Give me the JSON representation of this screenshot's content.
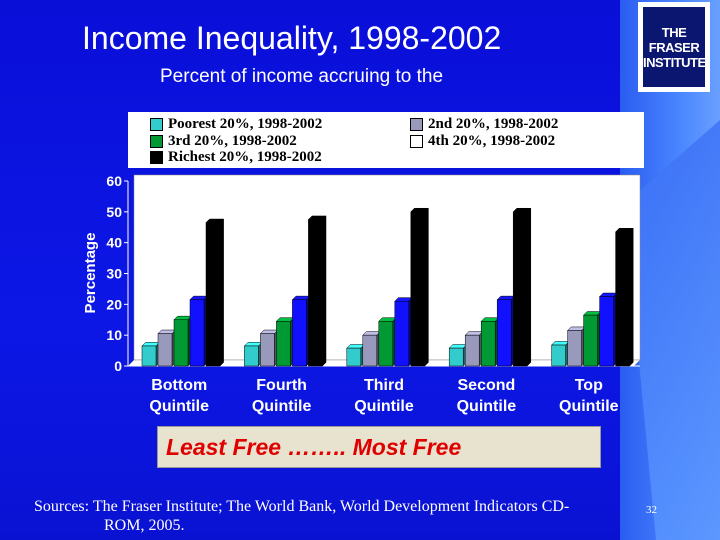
{
  "slide": {
    "title": "Income Inequality, 1998-2002",
    "subtitle": "Percent of income accruing to the",
    "logo_text": [
      "THE FRASER",
      "INSTITUTE"
    ],
    "banner": "Least Free …….. Most Free",
    "sources_line1": "Sources: The Fraser Institute; The World Bank, World Development Indicators CD-",
    "sources_line2": "ROM, 2005.",
    "page_number": "32"
  },
  "chart_data": {
    "type": "bar",
    "categories": [
      [
        "Bottom",
        "Quintile"
      ],
      [
        "Fourth",
        "Quintile"
      ],
      [
        "Third",
        "Quintile"
      ],
      [
        "Second",
        "Quintile"
      ],
      [
        "Top",
        "Quintile"
      ]
    ],
    "ylabel": "Percentage",
    "ylim": [
      0,
      60
    ],
    "yticks": [
      0,
      10,
      20,
      30,
      40,
      50,
      60
    ],
    "grid": false,
    "legend_position": "top",
    "series": [
      {
        "name": "Poorest 20%, 1998-2002",
        "color": "#33cccc",
        "values": [
          6.5,
          6.5,
          5.8,
          5.8,
          6.8
        ]
      },
      {
        "name": "2nd 20%, 1998-2002",
        "color": "#9999bb",
        "values": [
          10.5,
          10.5,
          10.0,
          10.0,
          11.5
        ]
      },
      {
        "name": "3rd 20%, 1998-2002",
        "color": "#009933",
        "values": [
          15.0,
          14.5,
          14.5,
          14.5,
          16.5
        ]
      },
      {
        "name": "4th 20%, 1998-2002",
        "color": "#1111ff",
        "values": [
          21.5,
          21.5,
          21.0,
          21.5,
          22.5
        ]
      },
      {
        "name": "Richest 20%, 1998-2002",
        "color": "#000000",
        "values": [
          46.5,
          47.5,
          50.0,
          50.0,
          43.5
        ]
      }
    ]
  }
}
